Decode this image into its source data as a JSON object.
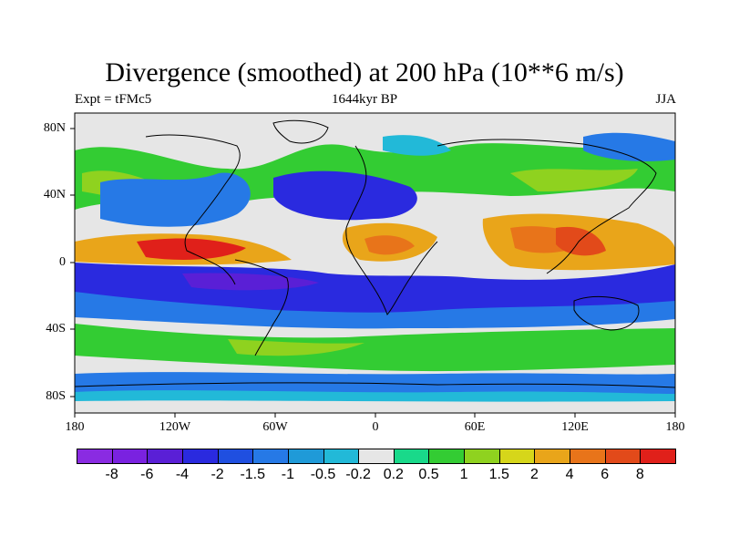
{
  "title": "Divergence (smoothed) at 200 hPa (10**6 m/s)",
  "subtitle_left": "Expt = tFMc5",
  "subtitle_center": "1644kyr BP",
  "subtitle_right": "JJA",
  "lat_labels": [
    "80N",
    "40N",
    "0",
    "40S",
    "80S"
  ],
  "lon_labels": [
    "180",
    "120W",
    "60W",
    "0",
    "60E",
    "120E",
    "180"
  ],
  "colorbar": {
    "labels": [
      "-8",
      "-6",
      "-4",
      "-2",
      "-1.5",
      "-1",
      "-0.5",
      "-0.2",
      "0.2",
      "0.5",
      "1",
      "1.5",
      "2",
      "4",
      "6",
      "8"
    ],
    "colors": [
      "#8a2be2",
      "#7a22e0",
      "#5a1fd6",
      "#2a2adf",
      "#1f4fe0",
      "#2679e6",
      "#1f9ad8",
      "#22b9d8",
      "#e6e6e6",
      "#19d98a",
      "#33cc33",
      "#8fd21f",
      "#d6d61a",
      "#e9a51a",
      "#e8741a",
      "#e24a1a",
      "#e0201a"
    ]
  },
  "legend_palette": {
    "ocean_background": "#e6e6e6",
    "coastline": "#000000"
  }
}
